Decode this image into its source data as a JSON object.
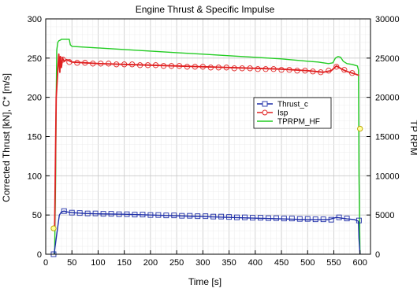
{
  "chart_data": {
    "type": "line",
    "title": "Engine Thrust & Specific Impulse",
    "xlabel": "Time [s]",
    "ylabel_left": "Corrected Thrust [kN], C* [m/s]",
    "ylabel_right": "TP RPM",
    "xlim": [
      0,
      620
    ],
    "ylim_left": [
      0,
      300
    ],
    "ylim_right": [
      0,
      30000
    ],
    "xticks": [
      0,
      50,
      100,
      150,
      200,
      250,
      300,
      350,
      400,
      450,
      500,
      550,
      600
    ],
    "yticks_left": [
      0,
      50,
      100,
      150,
      200,
      250,
      300
    ],
    "yticks_right": [
      0,
      5000,
      10000,
      15000,
      20000,
      25000,
      30000
    ],
    "grid": true,
    "legend_position": "center-right",
    "series": [
      {
        "name": "Thrust_c",
        "axis": "left",
        "color": "#1f2fa8",
        "marker": "square",
        "x": [
          16,
          22,
          26,
          30,
          35,
          40,
          50,
          75,
          100,
          150,
          200,
          250,
          300,
          350,
          400,
          450,
          500,
          540,
          555,
          565,
          575,
          590,
          597,
          598,
          600
        ],
        "y": [
          0,
          30,
          50,
          54,
          55,
          54,
          53,
          52,
          51.5,
          51,
          50,
          49,
          48,
          47,
          46,
          45,
          44,
          44,
          47,
          46,
          45,
          44,
          42,
          20,
          0
        ],
        "marker_x": [
          15,
          35,
          50,
          65,
          80,
          95,
          110,
          125,
          140,
          155,
          170,
          185,
          200,
          215,
          230,
          245,
          260,
          275,
          290,
          305,
          320,
          335,
          350,
          365,
          380,
          395,
          410,
          425,
          440,
          455,
          470,
          485,
          500,
          515,
          530,
          545,
          560,
          575,
          598
        ],
        "marker_y": [
          0,
          55,
          53,
          52.5,
          52,
          52,
          51.5,
          51.5,
          51,
          51,
          50.5,
          50.5,
          50,
          50,
          49.5,
          49.5,
          49,
          49,
          48.5,
          48.5,
          48,
          48,
          47.5,
          47,
          47,
          46.5,
          46.5,
          46,
          46,
          45.5,
          45.5,
          45,
          45,
          44.5,
          44.5,
          44,
          47,
          45.5,
          43
        ]
      },
      {
        "name": "Isp",
        "axis": "left",
        "color": "#e02020",
        "marker": "circle",
        "x": [
          17,
          20,
          23,
          25,
          27,
          28,
          30,
          32,
          35,
          40,
          50,
          100,
          150,
          200,
          250,
          300,
          350,
          400,
          450,
          500,
          530,
          545,
          555,
          565,
          575,
          590,
          598
        ],
        "y": [
          30,
          200,
          235,
          255,
          232,
          252,
          238,
          250,
          246,
          248,
          245,
          243,
          242,
          241,
          240,
          239,
          238,
          237,
          236,
          234,
          232,
          234,
          240,
          236,
          233,
          230,
          228
        ],
        "marker_x": [
          15,
          33,
          45,
          60,
          75,
          90,
          105,
          120,
          135,
          150,
          165,
          180,
          195,
          210,
          225,
          240,
          255,
          270,
          285,
          300,
          315,
          330,
          345,
          360,
          375,
          390,
          405,
          420,
          435,
          450,
          465,
          480,
          495,
          510,
          525,
          540,
          555,
          570,
          585,
          600
        ],
        "marker_y": [
          33,
          248,
          245,
          244,
          244,
          243,
          243,
          243,
          242,
          242,
          242,
          241,
          241,
          241,
          240,
          240,
          240,
          239,
          239,
          239,
          238,
          238,
          238,
          237,
          237,
          237,
          236,
          236,
          236,
          235,
          235,
          234,
          234,
          233,
          232,
          234,
          239,
          235,
          231,
          160
        ]
      },
      {
        "name": "TPRPM_HF",
        "axis": "right",
        "color": "#22cc22",
        "marker": "none",
        "x": [
          17,
          19,
          20,
          21,
          23,
          25,
          28,
          30,
          45,
          47,
          50,
          100,
          150,
          200,
          250,
          300,
          350,
          400,
          450,
          500,
          520,
          540,
          548,
          553,
          558,
          563,
          568,
          575,
          585,
          595,
          597,
          598,
          600
        ],
        "y": [
          0,
          10000,
          20000,
          26000,
          27000,
          27200,
          27300,
          27400,
          27400,
          26700,
          26500,
          26300,
          26100,
          25900,
          25700,
          25500,
          25300,
          25100,
          24900,
          24600,
          24500,
          24300,
          24400,
          25000,
          25200,
          25100,
          24600,
          24300,
          24200,
          24000,
          23500,
          10000,
          0
        ]
      }
    ]
  }
}
